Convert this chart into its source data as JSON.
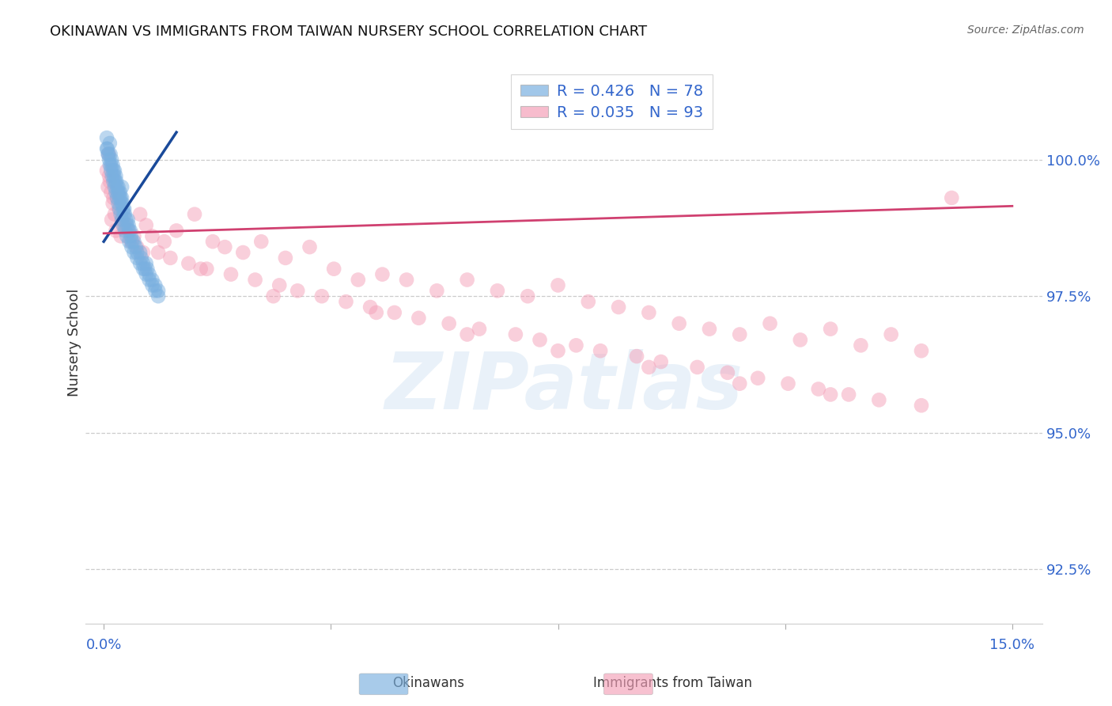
{
  "title": "OKINAWAN VS IMMIGRANTS FROM TAIWAN NURSERY SCHOOL CORRELATION CHART",
  "source": "Source: ZipAtlas.com",
  "ylabel": "Nursery School",
  "ylim": [
    91.5,
    101.8
  ],
  "xlim": [
    -0.3,
    15.5
  ],
  "yticks": [
    92.5,
    95.0,
    97.5,
    100.0
  ],
  "xticks": [
    0.0,
    3.75,
    7.5,
    11.25,
    15.0
  ],
  "legend_r_blue": "R = 0.426",
  "legend_n_blue": "N = 78",
  "legend_r_pink": "R = 0.035",
  "legend_n_pink": "N = 93",
  "blue_color": "#7ab0e0",
  "pink_color": "#f4a0b8",
  "blue_line_color": "#1a4a9a",
  "pink_line_color": "#d04070",
  "watermark_text": "ZIPatlas",
  "blue_x": [
    0.05,
    0.07,
    0.09,
    0.1,
    0.11,
    0.12,
    0.13,
    0.15,
    0.16,
    0.17,
    0.18,
    0.19,
    0.2,
    0.21,
    0.22,
    0.23,
    0.24,
    0.25,
    0.26,
    0.27,
    0.28,
    0.29,
    0.3,
    0.31,
    0.32,
    0.33,
    0.34,
    0.35,
    0.37,
    0.38,
    0.4,
    0.41,
    0.42,
    0.44,
    0.45,
    0.47,
    0.5,
    0.53,
    0.55,
    0.6,
    0.62,
    0.65,
    0.68,
    0.7,
    0.72,
    0.75,
    0.8,
    0.85,
    0.9,
    0.05,
    0.06,
    0.08,
    0.1,
    0.12,
    0.14,
    0.16,
    0.18,
    0.2,
    0.22,
    0.24,
    0.26,
    0.28,
    0.3,
    0.32,
    0.35,
    0.38,
    0.42,
    0.46,
    0.5,
    0.55,
    0.6,
    0.65,
    0.7,
    0.75,
    0.8,
    0.85,
    0.9,
    0.3
  ],
  "blue_y": [
    100.2,
    100.1,
    100.0,
    100.3,
    100.1,
    99.9,
    100.0,
    99.9,
    99.8,
    99.7,
    99.8,
    99.6,
    99.7,
    99.6,
    99.5,
    99.4,
    99.5,
    99.4,
    99.3,
    99.4,
    99.3,
    99.2,
    99.3,
    99.2,
    99.1,
    99.0,
    99.1,
    99.0,
    98.9,
    98.8,
    98.9,
    98.8,
    98.7,
    98.7,
    98.6,
    98.5,
    98.5,
    98.4,
    98.3,
    98.3,
    98.2,
    98.1,
    98.0,
    98.1,
    98.0,
    97.9,
    97.8,
    97.7,
    97.6,
    100.4,
    100.2,
    100.1,
    99.9,
    99.8,
    99.7,
    99.6,
    99.5,
    99.4,
    99.3,
    99.2,
    99.1,
    99.0,
    98.9,
    98.8,
    98.7,
    98.6,
    98.5,
    98.4,
    98.3,
    98.2,
    98.1,
    98.0,
    97.9,
    97.8,
    97.7,
    97.6,
    97.5,
    99.5
  ],
  "pink_x": [
    0.05,
    0.08,
    0.1,
    0.12,
    0.15,
    0.18,
    0.22,
    0.25,
    0.3,
    0.35,
    0.4,
    0.5,
    0.6,
    0.7,
    0.8,
    1.0,
    1.2,
    1.5,
    1.8,
    2.0,
    2.3,
    2.6,
    3.0,
    3.4,
    3.8,
    4.2,
    4.6,
    5.0,
    5.5,
    6.0,
    6.5,
    7.0,
    7.5,
    8.0,
    8.5,
    9.0,
    9.5,
    10.0,
    10.5,
    11.0,
    11.5,
    12.0,
    12.5,
    13.0,
    13.5,
    14.0,
    0.07,
    0.13,
    0.2,
    0.28,
    0.45,
    0.55,
    0.9,
    1.1,
    1.4,
    1.7,
    2.1,
    2.5,
    2.9,
    3.2,
    3.6,
    4.0,
    4.4,
    4.8,
    5.2,
    5.7,
    6.2,
    6.8,
    7.2,
    7.8,
    8.2,
    8.8,
    9.2,
    9.8,
    10.3,
    10.8,
    11.3,
    11.8,
    12.3,
    12.8,
    0.09,
    0.16,
    0.32,
    0.65,
    1.6,
    2.8,
    4.5,
    6.0,
    7.5,
    9.0,
    10.5,
    12.0,
    13.5
  ],
  "pink_y": [
    99.8,
    100.1,
    99.6,
    99.4,
    99.2,
    99.0,
    99.3,
    99.1,
    98.9,
    98.8,
    98.7,
    98.6,
    99.0,
    98.8,
    98.6,
    98.5,
    98.7,
    99.0,
    98.5,
    98.4,
    98.3,
    98.5,
    98.2,
    98.4,
    98.0,
    97.8,
    97.9,
    97.8,
    97.6,
    97.8,
    97.6,
    97.5,
    97.7,
    97.4,
    97.3,
    97.2,
    97.0,
    96.9,
    96.8,
    97.0,
    96.7,
    96.9,
    96.6,
    96.8,
    96.5,
    99.3,
    99.5,
    98.9,
    98.7,
    98.6,
    98.5,
    98.4,
    98.3,
    98.2,
    98.1,
    98.0,
    97.9,
    97.8,
    97.7,
    97.6,
    97.5,
    97.4,
    97.3,
    97.2,
    97.1,
    97.0,
    96.9,
    96.8,
    96.7,
    96.6,
    96.5,
    96.4,
    96.3,
    96.2,
    96.1,
    96.0,
    95.9,
    95.8,
    95.7,
    95.6,
    99.7,
    99.3,
    98.8,
    98.3,
    98.0,
    97.5,
    97.2,
    96.8,
    96.5,
    96.2,
    95.9,
    95.7,
    95.5
  ],
  "blue_line_x": [
    0.0,
    1.2
  ],
  "blue_line_y": [
    98.5,
    100.5
  ],
  "pink_line_x": [
    0.0,
    15.0
  ],
  "pink_line_y": [
    98.65,
    99.15
  ]
}
